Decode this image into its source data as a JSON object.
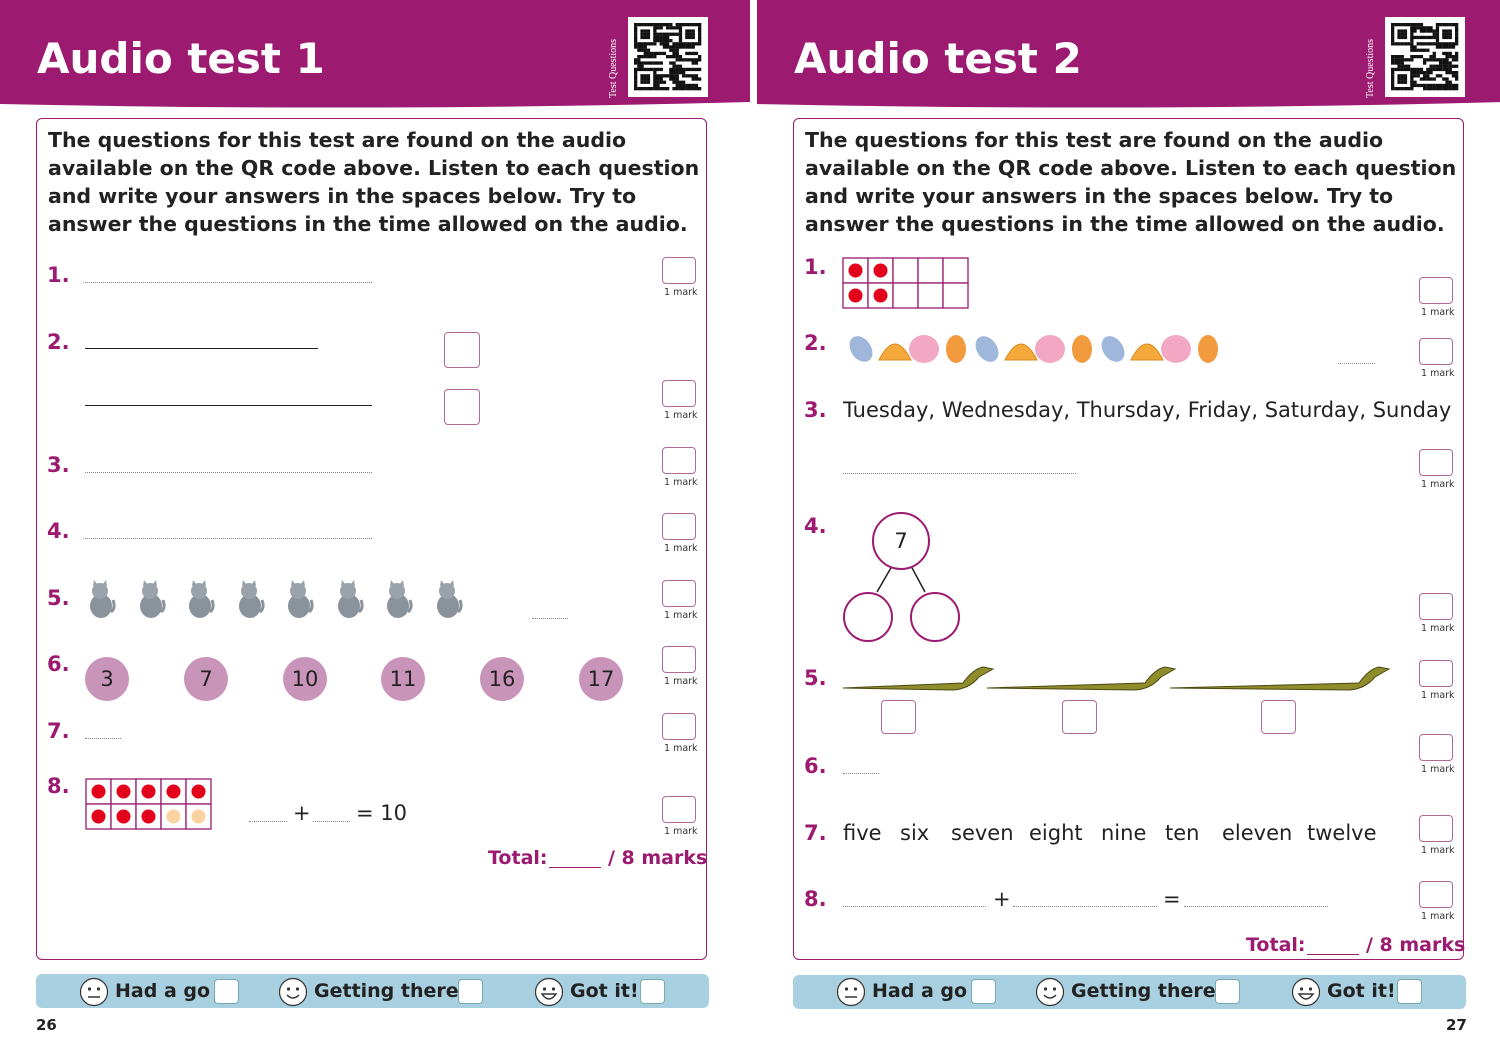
{
  "pages": [
    {
      "title": "Audio test 1",
      "side_label": "Test Questions",
      "instructions": "The questions for this test are found on the audio available on the QR code above. Listen to each question and write your answers in the spaces below. Try to answer the questions in the time allowed on the audio.",
      "questions": [
        {
          "number": "1.",
          "mark": "1 mark"
        },
        {
          "number": "2.",
          "mark": "1 mark"
        },
        {
          "number": "3.",
          "mark": "1 mark"
        },
        {
          "number": "4.",
          "mark": "1 mark"
        },
        {
          "number": "5.",
          "mark": "1 mark"
        },
        {
          "number": "6.",
          "mark": "1 mark",
          "circles": [
            3,
            7,
            10,
            11,
            16,
            17
          ]
        },
        {
          "number": "7.",
          "mark": "1 mark"
        },
        {
          "number": "8.",
          "mark": "1 mark",
          "plus": "+",
          "equals": "= 10"
        }
      ],
      "total": {
        "label": "Total:",
        "out_of": "/ 8 marks"
      },
      "ratings": [
        "Had a go",
        "Getting there",
        "Got it!"
      ],
      "page_number": "26"
    },
    {
      "title": "Audio test 2",
      "side_label": "Test Questions",
      "instructions": "The questions for this test are found on the audio available on the QR code above. Listen to each question and write your answers in the spaces below. Try to answer the questions in the time allowed on the audio.",
      "questions": [
        {
          "number": "1.",
          "mark": "1 mark"
        },
        {
          "number": "2.",
          "mark": "1 mark"
        },
        {
          "number": "3.",
          "mark": "1 mark",
          "text": "Tuesday, Wednesday, Thursday, Friday, Saturday, Sunday"
        },
        {
          "number": "4.",
          "mark": "1 mark",
          "bond": "7"
        },
        {
          "number": "5.",
          "mark": "1 mark"
        },
        {
          "number": "6.",
          "mark": "1 mark"
        },
        {
          "number": "7.",
          "mark": "1 mark",
          "words": [
            "five",
            "six",
            "seven",
            "eight",
            "nine",
            "ten",
            "eleven",
            "twelve"
          ]
        },
        {
          "number": "8.",
          "mark": "1 mark",
          "plus": "+",
          "equals": "="
        }
      ],
      "total": {
        "label": "Total:",
        "out_of": "/ 8 marks"
      },
      "ratings": [
        "Had a go",
        "Getting there",
        "Got it!"
      ],
      "page_number": "27"
    }
  ]
}
